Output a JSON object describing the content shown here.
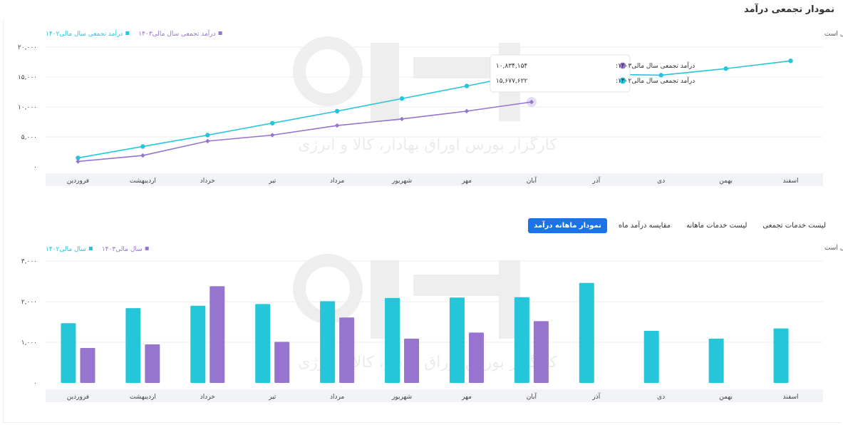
{
  "page": {
    "title": "نمودار تجمعی درآمد"
  },
  "tabs": [
    {
      "label": "نمودار ماهانه درآمد",
      "active": true
    },
    {
      "label": "مقایسه درآمد ماه",
      "active": false
    },
    {
      "label": "لیست خدمات ماهانه",
      "active": false
    },
    {
      "label": "لیست خدمات تجمعی",
      "active": false
    }
  ],
  "watermark": {
    "text": "کارگزار بورس اوراق بهادار، کالا و انرژی"
  },
  "colors": {
    "teal": "#26c6da",
    "purple": "#9575cd",
    "grid": "#eeeeee",
    "axis_band": "#f1f3f6"
  },
  "chart_data": [
    {
      "type": "line",
      "note": "اعداد بر اساس میلیارد ریال است",
      "legend_position": "top-left",
      "categories": [
        "فروردین",
        "اردیبهشت",
        "خرداد",
        "تیر",
        "مرداد",
        "شهریور",
        "مهر",
        "آبان",
        "آذر",
        "دی",
        "بهمن",
        "اسفند"
      ],
      "series": [
        {
          "name": "درآمد تجمعی سال مالی۱۴۰۲",
          "color": "#26c6da",
          "values": [
            1500,
            3400,
            5300,
            7300,
            9300,
            11400,
            13500,
            15677.622,
            null,
            15300,
            16400,
            17700
          ]
        },
        {
          "name": "درآمد تجمعی سال مالی۱۴۰۳",
          "color": "#9575cd",
          "values": [
            900,
            1900,
            4300,
            5300,
            6900,
            8000,
            9300,
            10834.154,
            null,
            null,
            null,
            null
          ]
        }
      ],
      "yticks": [
        "۰",
        "۵,۰۰۰",
        "۱۰,۰۰۰",
        "۱۵,۰۰۰",
        "۲۰,۰۰۰"
      ],
      "ylim": [
        0,
        20000
      ],
      "grid": true,
      "tooltip": {
        "rows": [
          {
            "label": "درآمد تجمعی سال مالی۱۴۰۳:",
            "value": "۱۰,۸۳۴,۱۵۴",
            "color": "#9575cd"
          },
          {
            "label": "درآمد تجمعی سال مالی۱۴۰۲:",
            "value": "۱۵,۶۷۷,۶۲۲",
            "color": "#26c6da"
          }
        ]
      }
    },
    {
      "type": "bar",
      "note": "اعداد بر اساس میلیارد ریال است",
      "legend_position": "top-left",
      "categories": [
        "فروردین",
        "اردیبهشت",
        "خرداد",
        "تیر",
        "مرداد",
        "شهریور",
        "مهر",
        "آبان",
        "آذر",
        "دی",
        "بهمن",
        "اسفند"
      ],
      "series": [
        {
          "name": "سال مالی۱۴۰۲",
          "color": "#26c6da",
          "values": [
            1470,
            1840,
            1900,
            1940,
            2010,
            2090,
            2100,
            2110,
            2460,
            1280,
            1090,
            1340
          ]
        },
        {
          "name": "سال مالی۱۴۰۳",
          "color": "#9575cd",
          "values": [
            860,
            950,
            2380,
            1010,
            1610,
            1090,
            1240,
            1520,
            null,
            null,
            null,
            null
          ]
        }
      ],
      "yticks": [
        "۰",
        "۱,۰۰۰",
        "۲,۰۰۰",
        "۳,۰۰۰"
      ],
      "ylim": [
        0,
        3000
      ],
      "grid": true
    }
  ]
}
